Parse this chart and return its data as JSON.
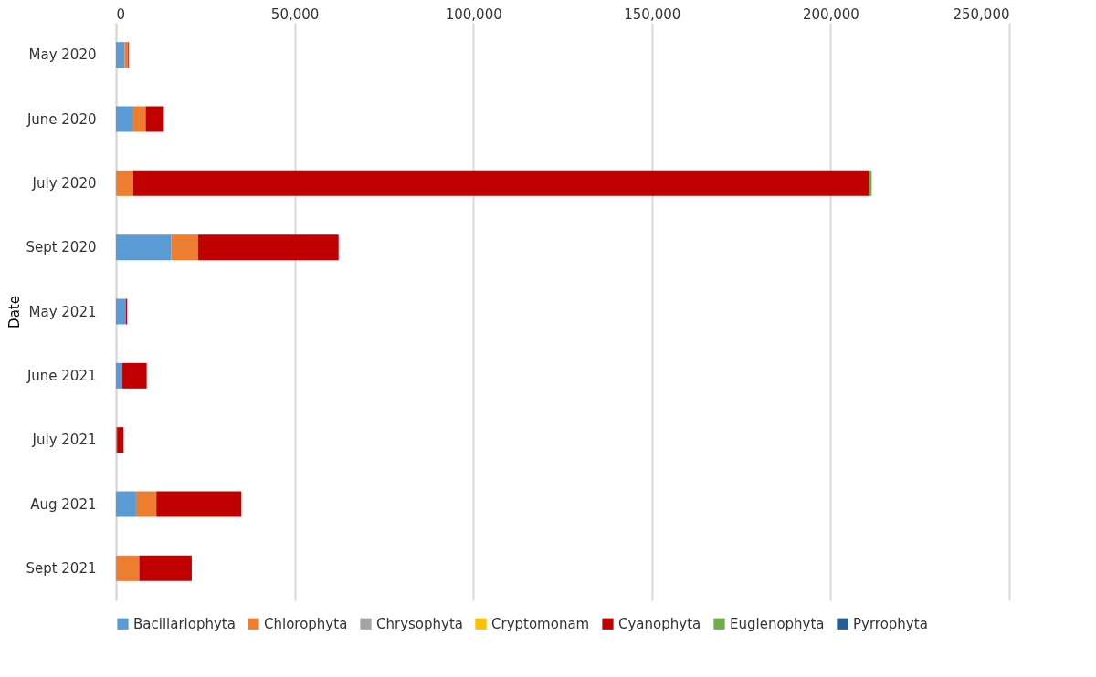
{
  "chart_data": {
    "type": "bar",
    "orientation": "horizontal",
    "stacked": true,
    "ylabel": "Date",
    "categories": [
      "May 2020",
      "June 2020",
      "July 2020",
      "Sept 2020",
      "May 2021",
      "June 2021",
      "July 2021",
      "Aug 2021",
      "Sept 2021"
    ],
    "series": [
      {
        "name": "Bacillariophyta",
        "color": "#5b9bd5",
        "values": [
          2400,
          4600,
          200,
          15500,
          2800,
          1800,
          0,
          5600,
          200
        ]
      },
      {
        "name": "Chlorophyta",
        "color": "#ed7d31",
        "values": [
          1000,
          3700,
          4600,
          7500,
          0,
          0,
          300,
          5700,
          6300
        ]
      },
      {
        "name": "Chrysophyta",
        "color": "#a5a5a5",
        "values": [
          0,
          null,
          0,
          null,
          0,
          null,
          0,
          0,
          0
        ]
      },
      {
        "name": "Cryptomonam",
        "color": "#ffc000",
        "values": [
          0,
          0,
          0,
          0,
          0,
          0,
          0,
          0,
          0
        ]
      },
      {
        "name": "Cyanophyta",
        "color": "#c00000",
        "values": [
          200,
          5100,
          206000,
          39300,
          300,
          6800,
          1800,
          23800,
          14700
        ]
      },
      {
        "name": "Euglenophyta",
        "color": "#70ad47",
        "values": [
          0,
          0,
          700,
          0,
          0,
          0,
          0,
          0,
          0
        ]
      },
      {
        "name": "Pyrrophyta",
        "color": "#255e91",
        "values": [
          0,
          0,
          0,
          0,
          0,
          0,
          0,
          0,
          0
        ]
      }
    ],
    "xlim": [
      0,
      250000
    ],
    "xticks": [
      0,
      {
        "value": 50000,
        "label": "50,000"
      },
      {
        "value": 100000,
        "label": "100,000"
      },
      {
        "value": 150000,
        "label": "150,000"
      },
      {
        "value": 200000,
        "label": "200,000"
      },
      {
        "value": 250000,
        "label": "250,000"
      }
    ],
    "grid": "x",
    "legend": "bottom"
  }
}
